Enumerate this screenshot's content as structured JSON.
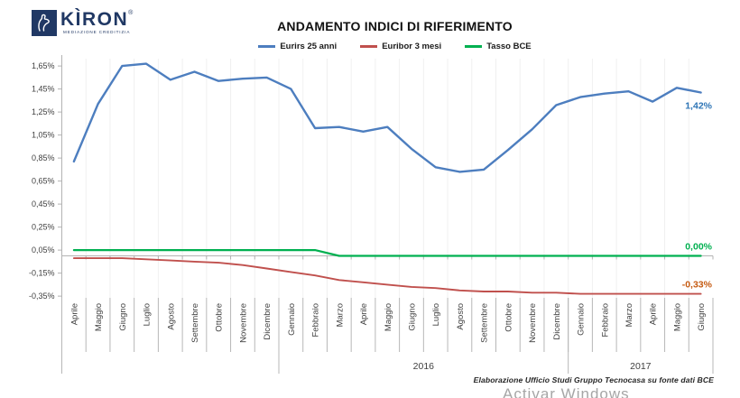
{
  "logo": {
    "brand": "KÌRON",
    "registered": "®",
    "tagline": "MEDIAZIONE CREDITIZIA"
  },
  "footer": {
    "source": "Elaborazione Ufficio Studi Gruppo Tecnocasa su fonte dati BCE"
  },
  "watermark": {
    "text": "Activar Windows"
  },
  "chart_data": {
    "type": "line",
    "title": "ANDAMENTO INDICI DI RIFERIMENTO",
    "xlabel": "",
    "ylabel": "",
    "legend_position": "top",
    "grid": false,
    "ylim": [
      -0.35,
      1.65
    ],
    "y_ticks": [
      "1,65%",
      "1,45%",
      "1,25%",
      "1,05%",
      "0,85%",
      "0,65%",
      "0,45%",
      "0,25%",
      "0,05%",
      "-0,15%",
      "-0,35%"
    ],
    "y_tick_values": [
      1.65,
      1.45,
      1.25,
      1.05,
      0.85,
      0.65,
      0.45,
      0.25,
      0.05,
      -0.15,
      -0.35
    ],
    "x": [
      "Aprile",
      "Maggio",
      "Giugno",
      "Luglio",
      "Agosto",
      "Settembre",
      "Ottobre",
      "Novembre",
      "Dicembre",
      "Gennaio",
      "Febbraio",
      "Marzo",
      "Aprile",
      "Maggio",
      "Giugno",
      "Luglio",
      "Agosto",
      "Settembre",
      "Ottobre",
      "Novembre",
      "Dicembre",
      "Gennaio",
      "Febbraio",
      "Marzo",
      "Aprile",
      "Maggio",
      "Giugno"
    ],
    "year_groups": [
      {
        "label": "",
        "start": 0,
        "end": 9
      },
      {
        "label": "2016",
        "start": 9,
        "end": 21
      },
      {
        "label": "2017",
        "start": 21,
        "end": 27
      }
    ],
    "series": [
      {
        "name": "Eurirs 25 anni",
        "color": "#4d7ebf",
        "end_label": "1,42%",
        "end_label_color": "#2e75b6",
        "values": [
          0.82,
          1.32,
          1.65,
          1.67,
          1.53,
          1.6,
          1.52,
          1.54,
          1.55,
          1.45,
          1.11,
          1.12,
          1.08,
          1.12,
          0.93,
          0.77,
          0.73,
          0.75,
          0.92,
          1.1,
          1.31,
          1.38,
          1.41,
          1.43,
          1.34,
          1.46,
          1.42
        ]
      },
      {
        "name": "Euribor 3 mesi",
        "color": "#c0504d",
        "end_label": "-0,33%",
        "end_label_color": "#c55a11",
        "values": [
          -0.02,
          -0.02,
          -0.02,
          -0.03,
          -0.04,
          -0.05,
          -0.06,
          -0.08,
          -0.11,
          -0.14,
          -0.17,
          -0.21,
          -0.23,
          -0.25,
          -0.27,
          -0.28,
          -0.3,
          -0.31,
          -0.31,
          -0.32,
          -0.32,
          -0.33,
          -0.33,
          -0.33,
          -0.33,
          -0.33,
          -0.33
        ]
      },
      {
        "name": "Tasso BCE",
        "color": "#00b050",
        "end_label": "0,00%",
        "end_label_color": "#00b050",
        "values": [
          0.05,
          0.05,
          0.05,
          0.05,
          0.05,
          0.05,
          0.05,
          0.05,
          0.05,
          0.05,
          0.05,
          0.0,
          0.0,
          0.0,
          0.0,
          0.0,
          0.0,
          0.0,
          0.0,
          0.0,
          0.0,
          0.0,
          0.0,
          0.0,
          0.0,
          0.0,
          0.0
        ]
      }
    ]
  }
}
